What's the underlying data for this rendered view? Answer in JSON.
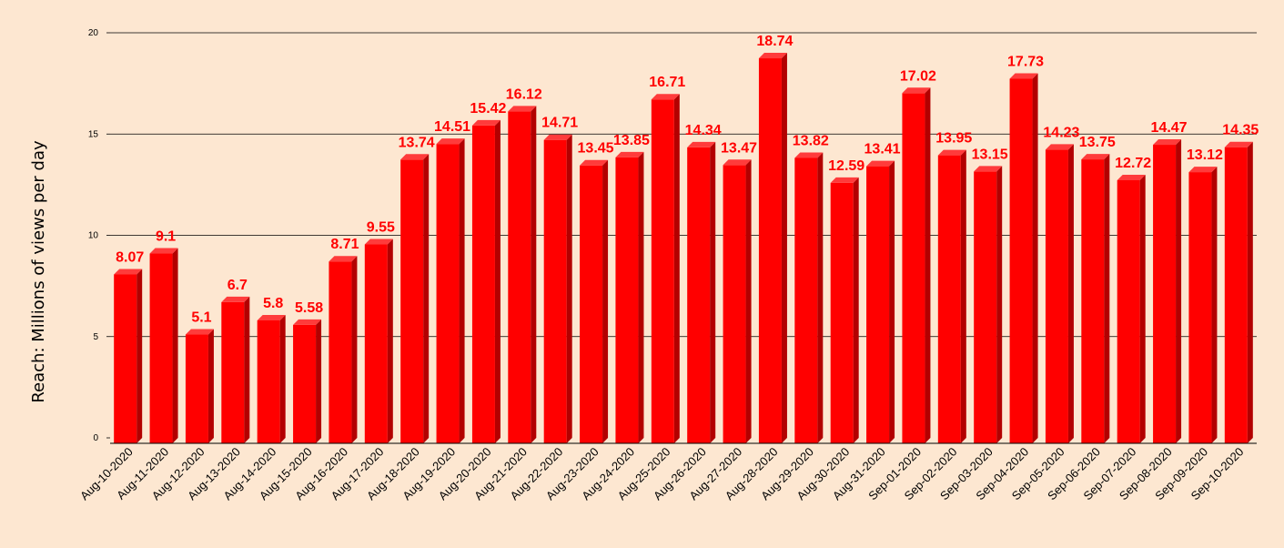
{
  "chart_data": {
    "type": "bar",
    "ylabel": "Reach: Millions of views per day",
    "xlabel": "",
    "ylim": [
      0,
      20
    ],
    "yticks": [
      0,
      5,
      10,
      15,
      20
    ],
    "grid": true,
    "bar_color": "#ff0000",
    "bar_side_color": "#b30000",
    "bar_top_color": "#ff3b3b",
    "label_color": "#ff0000",
    "background_color": "#fde7d1",
    "categories": [
      "Aug-10-2020",
      "Aug-11-2020",
      "Aug-12-2020",
      "Aug-13-2020",
      "Aug-14-2020",
      "Aug-15-2020",
      "Aug-16-2020",
      "Aug-17-2020",
      "Aug-18-2020",
      "Aug-19-2020",
      "Aug-20-2020",
      "Aug-21-2020",
      "Aug-22-2020",
      "Aug-23-2020",
      "Aug-24-2020",
      "Aug-25-2020",
      "Aug-26-2020",
      "Aug-27-2020",
      "Aug-28-2020",
      "Aug-29-2020",
      "Aug-30-2020",
      "Aug-31-2020",
      "Sep-01-2020",
      "Sep-02-2020",
      "Sep-03-2020",
      "Sep-04-2020",
      "Sep-05-2020",
      "Sep-06-2020",
      "Sep-07-2020",
      "Sep-08-2020",
      "Sep-09-2020",
      "Sep-10-2020"
    ],
    "values": [
      8.07,
      9.1,
      5.1,
      6.7,
      5.8,
      5.58,
      8.71,
      9.55,
      13.74,
      14.51,
      15.42,
      16.12,
      14.71,
      13.45,
      13.85,
      16.71,
      14.34,
      13.47,
      18.74,
      13.82,
      12.59,
      13.41,
      17.02,
      13.95,
      13.15,
      17.73,
      14.23,
      13.75,
      12.72,
      14.47,
      13.12,
      14.35
    ]
  }
}
